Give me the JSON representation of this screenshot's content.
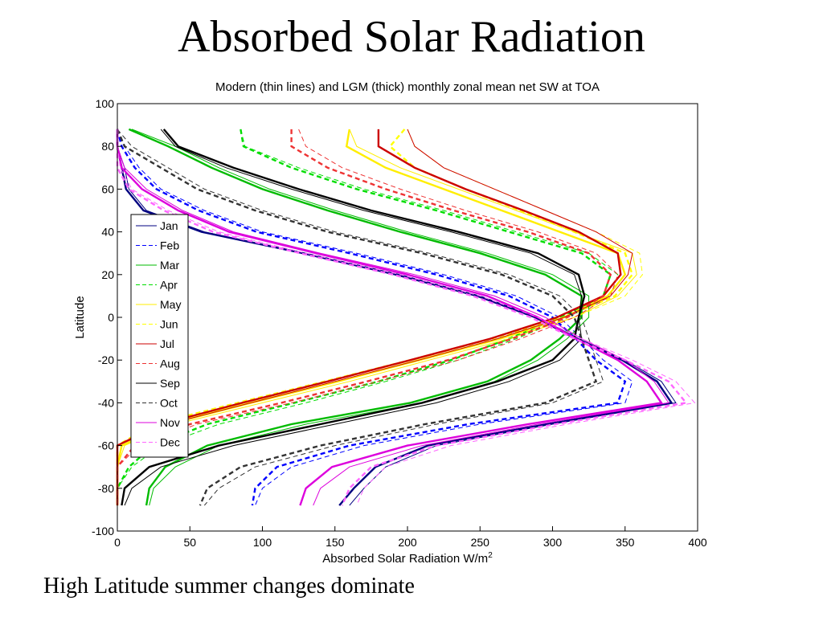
{
  "slide": {
    "title": "Absorbed Solar Radiation",
    "caption": "High Latitude summer changes dominate"
  },
  "chart_data": {
    "type": "line",
    "title": "Modern (thin lines) and LGM (thick) monthly zonal mean net SW at TOA",
    "xlabel": "Absorbed Solar Radiation W/m",
    "xlabel_sup": "2",
    "ylabel": "Latitude",
    "xlim": [
      0,
      400
    ],
    "ylim": [
      -100,
      100
    ],
    "xticks": [
      0,
      50,
      100,
      150,
      200,
      250,
      300,
      350,
      400
    ],
    "yticks": [
      -100,
      -80,
      -60,
      -40,
      -20,
      0,
      20,
      40,
      60,
      80,
      100
    ],
    "grid": false,
    "legend_position": "left-middle",
    "latitudes": [
      88,
      80,
      70,
      60,
      50,
      40,
      30,
      20,
      10,
      0,
      -10,
      -20,
      -30,
      -40,
      -50,
      -60,
      -70,
      -80,
      -88
    ],
    "series": [
      {
        "name": "Jan",
        "color": "#000080",
        "dash": "solid",
        "modern": [
          0,
          0,
          5,
          8,
          20,
          60,
          130,
          195,
          250,
          290,
          318,
          350,
          375,
          385,
          300,
          220,
          185,
          170,
          160
        ],
        "lgm": [
          0,
          0,
          3,
          6,
          18,
          58,
          128,
          192,
          248,
          288,
          316,
          348,
          372,
          382,
          296,
          214,
          178,
          163,
          153
        ]
      },
      {
        "name": "Feb",
        "color": "#0000ff",
        "dash": "dash",
        "modern": [
          0,
          5,
          15,
          30,
          60,
          100,
          165,
          225,
          275,
          305,
          320,
          335,
          355,
          350,
          250,
          170,
          120,
          100,
          95
        ],
        "lgm": [
          0,
          3,
          12,
          27,
          56,
          96,
          160,
          220,
          270,
          300,
          316,
          330,
          350,
          345,
          242,
          160,
          110,
          95,
          93
        ]
      },
      {
        "name": "Mar",
        "color": "#00bb00",
        "dash": "solid",
        "modern": [
          10,
          40,
          70,
          105,
          150,
          200,
          255,
          300,
          325,
          325,
          310,
          290,
          260,
          210,
          130,
          70,
          40,
          25,
          22
        ],
        "lgm": [
          8,
          35,
          65,
          100,
          145,
          195,
          250,
          295,
          320,
          320,
          305,
          285,
          255,
          202,
          120,
          62,
          33,
          22,
          20
        ]
      },
      {
        "name": "Apr",
        "color": "#00dd00",
        "dash": "dash",
        "modern": [
          85,
          88,
          125,
          170,
          225,
          275,
          325,
          345,
          340,
          310,
          275,
          235,
          185,
          130,
          70,
          30,
          10,
          0,
          0
        ],
        "lgm": [
          85,
          87,
          120,
          165,
          220,
          270,
          320,
          340,
          335,
          305,
          270,
          230,
          180,
          122,
          62,
          25,
          8,
          0,
          0
        ]
      },
      {
        "name": "May",
        "color": "#ffee00",
        "dash": "solid",
        "modern": [
          160,
          165,
          195,
          235,
          275,
          315,
          355,
          358,
          345,
          315,
          270,
          215,
          160,
          100,
          40,
          5,
          0,
          0,
          0
        ],
        "lgm": [
          160,
          158,
          185,
          225,
          265,
          305,
          345,
          350,
          338,
          308,
          264,
          208,
          152,
          92,
          35,
          3,
          0,
          0,
          0
        ]
      },
      {
        "name": "Jun",
        "color": "#ffff00",
        "dash": "dash",
        "modern": [
          200,
          205,
          225,
          260,
          295,
          330,
          360,
          362,
          350,
          315,
          265,
          210,
          150,
          90,
          30,
          0,
          0,
          0,
          0
        ],
        "lgm": [
          198,
          188,
          205,
          240,
          278,
          315,
          350,
          355,
          343,
          308,
          258,
          202,
          143,
          83,
          25,
          0,
          0,
          0,
          0
        ]
      },
      {
        "name": "Jul",
        "color": "#cc0000",
        "dash": "solid",
        "modern": [
          200,
          205,
          225,
          260,
          295,
          330,
          355,
          352,
          340,
          308,
          262,
          208,
          150,
          92,
          35,
          0,
          0,
          0,
          0
        ],
        "lgm": [
          180,
          180,
          205,
          240,
          280,
          318,
          345,
          347,
          335,
          303,
          257,
          202,
          145,
          86,
          30,
          0,
          0,
          0,
          0
        ]
      },
      {
        "name": "Aug",
        "color": "#ee3333",
        "dash": "dash",
        "modern": [
          125,
          130,
          155,
          195,
          240,
          290,
          330,
          345,
          340,
          315,
          278,
          235,
          180,
          120,
          55,
          15,
          0,
          0,
          0
        ],
        "lgm": [
          120,
          120,
          145,
          185,
          232,
          283,
          325,
          340,
          335,
          310,
          272,
          228,
          172,
          113,
          50,
          12,
          0,
          0,
          0
        ]
      },
      {
        "name": "Sep",
        "color": "#000000",
        "dash": "solid",
        "modern": [
          30,
          40,
          75,
          120,
          170,
          230,
          285,
          315,
          320,
          318,
          320,
          305,
          270,
          220,
          150,
          80,
          30,
          10,
          5
        ],
        "lgm": [
          32,
          42,
          80,
          125,
          175,
          235,
          290,
          318,
          322,
          318,
          315,
          300,
          262,
          210,
          140,
          70,
          22,
          5,
          3
        ]
      },
      {
        "name": "Oct",
        "color": "#333333",
        "dash": "dash",
        "modern": [
          0,
          10,
          35,
          60,
          100,
          150,
          215,
          270,
          305,
          320,
          325,
          330,
          335,
          300,
          220,
          150,
          95,
          70,
          60
        ],
        "lgm": [
          0,
          5,
          30,
          55,
          95,
          145,
          210,
          265,
          300,
          315,
          320,
          325,
          330,
          295,
          212,
          140,
          85,
          62,
          57
        ]
      },
      {
        "name": "Nov",
        "color": "#dd00dd",
        "dash": "solid",
        "modern": [
          0,
          0,
          5,
          20,
          45,
          80,
          140,
          205,
          260,
          295,
          320,
          350,
          370,
          380,
          290,
          210,
          160,
          140,
          135
        ],
        "lgm": [
          0,
          0,
          3,
          17,
          42,
          77,
          137,
          200,
          255,
          290,
          316,
          345,
          365,
          375,
          283,
          200,
          148,
          130,
          126
        ]
      },
      {
        "name": "Dec",
        "color": "#ff66ff",
        "dash": "dash",
        "modern": [
          0,
          0,
          2,
          10,
          35,
          70,
          130,
          195,
          250,
          290,
          320,
          355,
          385,
          398,
          310,
          230,
          185,
          170,
          165
        ],
        "lgm": [
          0,
          0,
          0,
          8,
          32,
          66,
          126,
          190,
          245,
          285,
          315,
          350,
          380,
          392,
          302,
          220,
          175,
          160,
          155
        ]
      }
    ]
  }
}
